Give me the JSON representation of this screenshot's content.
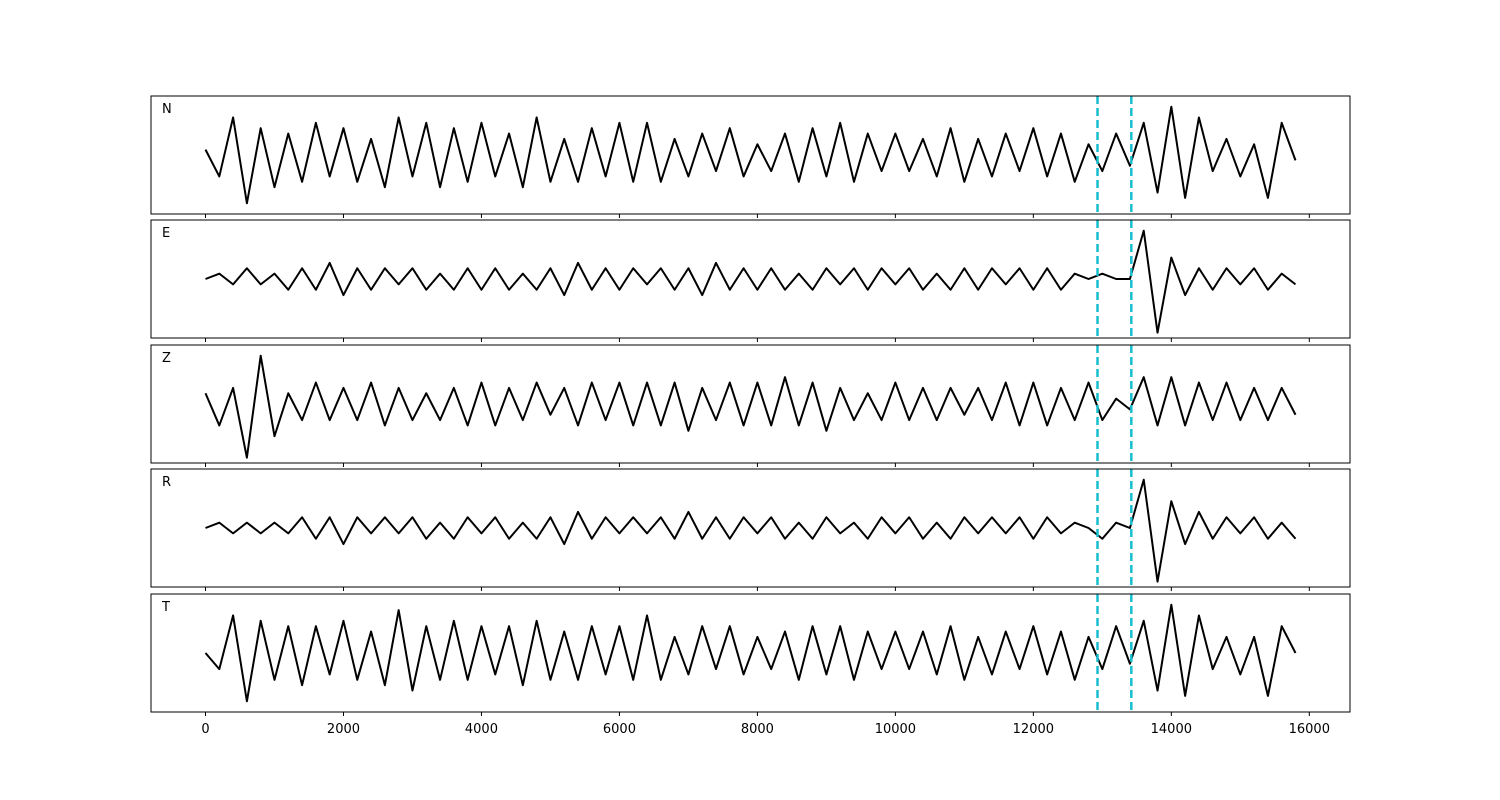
{
  "chart_data": [
    {
      "type": "line",
      "label": "N",
      "x": [
        0,
        200,
        400,
        600,
        800,
        1000,
        1200,
        1400,
        1600,
        1800,
        2000,
        2200,
        2400,
        2600,
        2800,
        3000,
        3200,
        3400,
        3600,
        3800,
        4000,
        4200,
        4400,
        4600,
        4800,
        5000,
        5200,
        5400,
        5600,
        5800,
        6000,
        6200,
        6400,
        6600,
        6800,
        7000,
        7200,
        7400,
        7600,
        7800,
        8000,
        8200,
        8400,
        8600,
        8800,
        9000,
        9200,
        9400,
        9600,
        9800,
        10000,
        10200,
        10400,
        10600,
        10800,
        11000,
        11200,
        11400,
        11600,
        11800,
        12000,
        12200,
        12400,
        12600,
        12800,
        13000,
        13200,
        13400,
        13600,
        13800,
        14000,
        14200,
        14400,
        14600,
        14800,
        15000,
        15200,
        15400,
        15600,
        15800
      ],
      "series": [
        {
          "color": "#000000",
          "values": [
            0.1,
            -0.4,
            0.7,
            -0.9,
            0.5,
            -0.6,
            0.4,
            -0.5,
            0.6,
            -0.4,
            0.5,
            -0.5,
            0.3,
            -0.6,
            0.7,
            -0.4,
            0.6,
            -0.6,
            0.5,
            -0.5,
            0.6,
            -0.4,
            0.4,
            -0.6,
            0.7,
            -0.5,
            0.3,
            -0.5,
            0.5,
            -0.4,
            0.6,
            -0.5,
            0.6,
            -0.5,
            0.3,
            -0.4,
            0.4,
            -0.3,
            0.5,
            -0.4,
            0.2,
            -0.3,
            0.4,
            -0.5,
            0.5,
            -0.4,
            0.6,
            -0.5,
            0.4,
            -0.3,
            0.4,
            -0.3,
            0.3,
            -0.4,
            0.5,
            -0.5,
            0.3,
            -0.4,
            0.4,
            -0.3,
            0.5,
            -0.4,
            0.4,
            -0.5,
            0.2,
            -0.3,
            0.4,
            -0.2,
            0.6,
            -0.7,
            0.9,
            -0.8,
            0.7,
            -0.3,
            0.3,
            -0.4,
            0.2,
            -0.8,
            0.6,
            -0.1
          ]
        }
      ],
      "xlim": [
        -790,
        16590
      ],
      "ylim": [
        -1.1,
        1.1
      ],
      "xticks": [
        0,
        2000,
        4000,
        6000,
        8000,
        10000,
        12000,
        14000,
        16000
      ],
      "vlines": [
        12930,
        13420
      ],
      "vline_color": "#17becf"
    },
    {
      "type": "line",
      "label": "E",
      "x": [
        0,
        200,
        400,
        600,
        800,
        1000,
        1200,
        1400,
        1600,
        1800,
        2000,
        2200,
        2400,
        2600,
        2800,
        3000,
        3200,
        3400,
        3600,
        3800,
        4000,
        4200,
        4400,
        4600,
        4800,
        5000,
        5200,
        5400,
        5600,
        5800,
        6000,
        6200,
        6400,
        6600,
        6800,
        7000,
        7200,
        7400,
        7600,
        7800,
        8000,
        8200,
        8400,
        8600,
        8800,
        9000,
        9200,
        9400,
        9600,
        9800,
        10000,
        10200,
        10400,
        10600,
        10800,
        11000,
        11200,
        11400,
        11600,
        11800,
        12000,
        12200,
        12400,
        12600,
        12800,
        13000,
        13200,
        13400,
        13600,
        13800,
        14000,
        14200,
        14400,
        14600,
        14800,
        15000,
        15200,
        15400,
        15600,
        15800
      ],
      "series": [
        {
          "color": "#000000",
          "values": [
            0.0,
            0.1,
            -0.1,
            0.2,
            -0.1,
            0.1,
            -0.2,
            0.2,
            -0.2,
            0.3,
            -0.3,
            0.2,
            -0.2,
            0.2,
            -0.1,
            0.2,
            -0.2,
            0.1,
            -0.2,
            0.2,
            -0.2,
            0.2,
            -0.2,
            0.1,
            -0.2,
            0.2,
            -0.3,
            0.3,
            -0.2,
            0.2,
            -0.2,
            0.2,
            -0.1,
            0.2,
            -0.2,
            0.2,
            -0.3,
            0.3,
            -0.2,
            0.2,
            -0.2,
            0.2,
            -0.2,
            0.1,
            -0.2,
            0.2,
            -0.1,
            0.2,
            -0.2,
            0.2,
            -0.1,
            0.2,
            -0.2,
            0.1,
            -0.2,
            0.2,
            -0.2,
            0.2,
            -0.1,
            0.2,
            -0.2,
            0.2,
            -0.2,
            0.1,
            0.0,
            0.1,
            0.0,
            0.0,
            0.9,
            -1.0,
            0.4,
            -0.3,
            0.2,
            -0.2,
            0.2,
            -0.1,
            0.2,
            -0.2,
            0.1,
            -0.1
          ]
        }
      ],
      "xlim": [
        -790,
        16590
      ],
      "ylim": [
        -1.1,
        1.1
      ],
      "xticks": [
        0,
        2000,
        4000,
        6000,
        8000,
        10000,
        12000,
        14000,
        16000
      ],
      "vlines": [
        12930,
        13420
      ],
      "vline_color": "#17becf"
    },
    {
      "type": "line",
      "label": "Z",
      "x": [
        0,
        200,
        400,
        600,
        800,
        1000,
        1200,
        1400,
        1600,
        1800,
        2000,
        2200,
        2400,
        2600,
        2800,
        3000,
        3200,
        3400,
        3600,
        3800,
        4000,
        4200,
        4400,
        4600,
        4800,
        5000,
        5200,
        5400,
        5600,
        5800,
        6000,
        6200,
        6400,
        6600,
        6800,
        7000,
        7200,
        7400,
        7600,
        7800,
        8000,
        8200,
        8400,
        8600,
        8800,
        9000,
        9200,
        9400,
        9600,
        9800,
        10000,
        10200,
        10400,
        10600,
        10800,
        11000,
        11200,
        11400,
        11600,
        11800,
        12000,
        12200,
        12400,
        12600,
        12800,
        13000,
        13200,
        13400,
        13600,
        13800,
        14000,
        14200,
        14400,
        14600,
        14800,
        15000,
        15200,
        15400,
        15600,
        15800
      ],
      "series": [
        {
          "color": "#000000",
          "values": [
            0.2,
            -0.4,
            0.3,
            -1.0,
            0.9,
            -0.6,
            0.2,
            -0.3,
            0.4,
            -0.3,
            0.3,
            -0.3,
            0.4,
            -0.4,
            0.3,
            -0.3,
            0.2,
            -0.3,
            0.3,
            -0.4,
            0.4,
            -0.4,
            0.3,
            -0.3,
            0.4,
            -0.2,
            0.3,
            -0.4,
            0.4,
            -0.3,
            0.4,
            -0.4,
            0.4,
            -0.4,
            0.4,
            -0.5,
            0.3,
            -0.3,
            0.4,
            -0.4,
            0.4,
            -0.4,
            0.5,
            -0.4,
            0.4,
            -0.5,
            0.3,
            -0.3,
            0.2,
            -0.3,
            0.4,
            -0.3,
            0.3,
            -0.3,
            0.3,
            -0.2,
            0.3,
            -0.3,
            0.4,
            -0.4,
            0.4,
            -0.4,
            0.3,
            -0.3,
            0.4,
            -0.3,
            0.1,
            -0.1,
            0.5,
            -0.4,
            0.5,
            -0.4,
            0.4,
            -0.3,
            0.4,
            -0.3,
            0.3,
            -0.3,
            0.3,
            -0.2
          ]
        }
      ],
      "xlim": [
        -790,
        16590
      ],
      "ylim": [
        -1.1,
        1.1
      ],
      "xticks": [
        0,
        2000,
        4000,
        6000,
        8000,
        10000,
        12000,
        14000,
        16000
      ],
      "vlines": [
        12930,
        13420
      ],
      "vline_color": "#17becf"
    },
    {
      "type": "line",
      "label": "R",
      "x": [
        0,
        200,
        400,
        600,
        800,
        1000,
        1200,
        1400,
        1600,
        1800,
        2000,
        2200,
        2400,
        2600,
        2800,
        3000,
        3200,
        3400,
        3600,
        3800,
        4000,
        4200,
        4400,
        4600,
        4800,
        5000,
        5200,
        5400,
        5600,
        5800,
        6000,
        6200,
        6400,
        6600,
        6800,
        7000,
        7200,
        7400,
        7600,
        7800,
        8000,
        8200,
        8400,
        8600,
        8800,
        9000,
        9200,
        9400,
        9600,
        9800,
        10000,
        10200,
        10400,
        10600,
        10800,
        11000,
        11200,
        11400,
        11600,
        11800,
        12000,
        12200,
        12400,
        12600,
        12800,
        13000,
        13200,
        13400,
        13600,
        13800,
        14000,
        14200,
        14400,
        14600,
        14800,
        15000,
        15200,
        15400,
        15600,
        15800
      ],
      "series": [
        {
          "color": "#000000",
          "values": [
            0.0,
            0.1,
            -0.1,
            0.1,
            -0.1,
            0.1,
            -0.1,
            0.2,
            -0.2,
            0.2,
            -0.3,
            0.2,
            -0.1,
            0.2,
            -0.1,
            0.2,
            -0.2,
            0.1,
            -0.2,
            0.2,
            -0.1,
            0.2,
            -0.2,
            0.1,
            -0.2,
            0.2,
            -0.3,
            0.3,
            -0.2,
            0.2,
            -0.1,
            0.2,
            -0.1,
            0.2,
            -0.2,
            0.3,
            -0.2,
            0.2,
            -0.2,
            0.2,
            -0.1,
            0.2,
            -0.2,
            0.1,
            -0.2,
            0.2,
            -0.1,
            0.1,
            -0.2,
            0.2,
            -0.1,
            0.2,
            -0.2,
            0.1,
            -0.2,
            0.2,
            -0.1,
            0.2,
            -0.1,
            0.2,
            -0.2,
            0.2,
            -0.1,
            0.1,
            0.0,
            -0.2,
            0.1,
            0.0,
            0.9,
            -1.0,
            0.5,
            -0.3,
            0.3,
            -0.2,
            0.2,
            -0.1,
            0.2,
            -0.2,
            0.1,
            -0.2
          ]
        }
      ],
      "xlim": [
        -790,
        16590
      ],
      "ylim": [
        -1.1,
        1.1
      ],
      "xticks": [
        0,
        2000,
        4000,
        6000,
        8000,
        10000,
        12000,
        14000,
        16000
      ],
      "vlines": [
        12930,
        13420
      ],
      "vline_color": "#17becf"
    },
    {
      "type": "line",
      "label": "T",
      "x": [
        0,
        200,
        400,
        600,
        800,
        1000,
        1200,
        1400,
        1600,
        1800,
        2000,
        2200,
        2400,
        2600,
        2800,
        3000,
        3200,
        3400,
        3600,
        3800,
        4000,
        4200,
        4400,
        4600,
        4800,
        5000,
        5200,
        5400,
        5600,
        5800,
        6000,
        6200,
        6400,
        6600,
        6800,
        7000,
        7200,
        7400,
        7600,
        7800,
        8000,
        8200,
        8400,
        8600,
        8800,
        9000,
        9200,
        9400,
        9600,
        9800,
        10000,
        10200,
        10400,
        10600,
        10800,
        11000,
        11200,
        11400,
        11600,
        11800,
        12000,
        12200,
        12400,
        12600,
        12800,
        13000,
        13200,
        13400,
        13600,
        13800,
        14000,
        14200,
        14400,
        14600,
        14800,
        15000,
        15200,
        15400,
        15600,
        15800
      ],
      "series": [
        {
          "color": "#000000",
          "values": [
            0.0,
            -0.3,
            0.7,
            -0.9,
            0.6,
            -0.5,
            0.5,
            -0.6,
            0.5,
            -0.4,
            0.6,
            -0.5,
            0.4,
            -0.6,
            0.8,
            -0.7,
            0.5,
            -0.5,
            0.6,
            -0.5,
            0.5,
            -0.4,
            0.5,
            -0.6,
            0.6,
            -0.5,
            0.4,
            -0.5,
            0.5,
            -0.4,
            0.5,
            -0.5,
            0.7,
            -0.5,
            0.3,
            -0.4,
            0.5,
            -0.3,
            0.5,
            -0.4,
            0.3,
            -0.3,
            0.4,
            -0.5,
            0.5,
            -0.4,
            0.5,
            -0.5,
            0.4,
            -0.3,
            0.4,
            -0.3,
            0.4,
            -0.4,
            0.5,
            -0.5,
            0.3,
            -0.4,
            0.4,
            -0.3,
            0.5,
            -0.4,
            0.4,
            -0.5,
            0.3,
            -0.3,
            0.5,
            -0.2,
            0.6,
            -0.7,
            0.9,
            -0.8,
            0.7,
            -0.3,
            0.3,
            -0.4,
            0.3,
            -0.8,
            0.5,
            0.0
          ]
        }
      ],
      "xlim": [
        -790,
        16590
      ],
      "ylim": [
        -1.1,
        1.1
      ],
      "xticks": [
        0,
        2000,
        4000,
        6000,
        8000,
        10000,
        12000,
        14000,
        16000
      ],
      "vlines": [
        12930,
        13420
      ],
      "vline_color": "#17becf"
    }
  ]
}
